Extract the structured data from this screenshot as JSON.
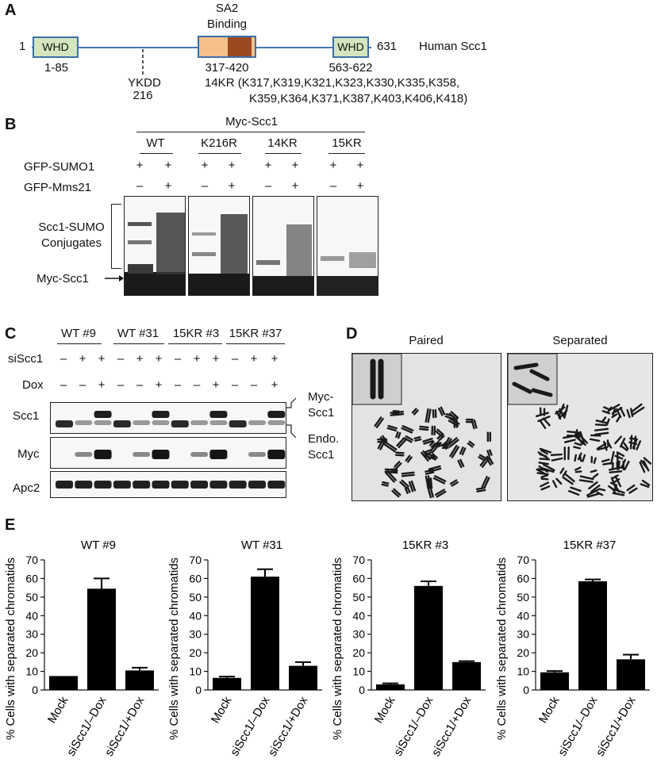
{
  "panel_labels": {
    "a": "A",
    "b": "B",
    "c": "C",
    "d": "D",
    "e": "E"
  },
  "panelA": {
    "start": "1",
    "end": "631",
    "protein": "Human Scc1",
    "whd1": "WHD",
    "whd1_range": "1-85",
    "whd2": "WHD",
    "whd2_range": "563-622",
    "sa2_line1": "SA2",
    "sa2_line2": "Binding",
    "sa2_range": "317-420",
    "ykdd": "YKDD",
    "ykdd_pos": "216",
    "kr_line1": "14KR (K317,K319,K321,K323,K330,K335,K358,",
    "kr_line2": "K359,K364,K371,K387,K403,K406,K418)",
    "colors": {
      "backbone": "#4a78b5",
      "whd_fill": "#d4e6bf",
      "whd_border": "#3d6fa8",
      "sa2_light": "#f6c08a",
      "sa2_dark": "#9b4a1f"
    }
  },
  "panelB": {
    "header": "Myc-Scc1",
    "groups": [
      "WT",
      "K216R",
      "14KR",
      "15KR"
    ],
    "row1_label": "GFP-SUMO1",
    "row2_label": "GFP-Mms21",
    "row1_signs": [
      "+",
      "+",
      "+",
      "+",
      "+",
      "+",
      "+",
      "+"
    ],
    "row2_signs": [
      "–",
      "+",
      "–",
      "+",
      "–",
      "+",
      "–",
      "+"
    ],
    "conj_line1": "Scc1-SUMO",
    "conj_line2": "Conjugates",
    "myc_label": "Myc-Scc1"
  },
  "panelC": {
    "groups": [
      "WT #9",
      "WT #31",
      "15KR #3",
      "15KR #37"
    ],
    "row1_label": "siScc1",
    "row2_label": "Dox",
    "row1_signs": [
      "–",
      "+",
      "+",
      "–",
      "+",
      "+",
      "–",
      "+",
      "+",
      "–",
      "+",
      "+"
    ],
    "row2_signs": [
      "–",
      "–",
      "+",
      "–",
      "–",
      "+",
      "–",
      "–",
      "+",
      "–",
      "–",
      "+"
    ],
    "blots": [
      "Scc1",
      "Myc",
      "Apc2"
    ],
    "myc_scc1_1": "Myc-",
    "myc_scc1_2": "Scc1",
    "endo_1": "Endo.",
    "endo_2": "Scc1"
  },
  "panelD": {
    "left_title": "Paired",
    "right_title": "Separated"
  },
  "chart_data": [
    {
      "type": "bar",
      "title": "WT #9",
      "ylabel": "% Cells with separated chromatids",
      "categories": [
        "Mock",
        "siScc1/–Dox",
        "siScc1/+Dox"
      ],
      "values": [
        7.5,
        54.5,
        10.5
      ],
      "errors": [
        0,
        5.5,
        1.5
      ],
      "ylim": [
        0,
        70
      ],
      "yticks": [
        0,
        10,
        20,
        30,
        40,
        50,
        60,
        70
      ]
    },
    {
      "type": "bar",
      "title": "WT #31",
      "ylabel": "% Cells with separated chromatids",
      "categories": [
        "Mock",
        "siScc1/–Dox",
        "siScc1/+Dox"
      ],
      "values": [
        6.5,
        61,
        13
      ],
      "errors": [
        0.7,
        4,
        2
      ],
      "ylim": [
        0,
        70
      ],
      "yticks": [
        0,
        10,
        20,
        30,
        40,
        50,
        60,
        70
      ]
    },
    {
      "type": "bar",
      "title": "15KR #3",
      "ylabel": "% Cells with separated chromatids",
      "categories": [
        "Mock",
        "siScc1/–Dox",
        "siScc1/+Dox"
      ],
      "values": [
        3,
        56,
        15
      ],
      "errors": [
        0.6,
        2.5,
        0.5
      ],
      "ylim": [
        0,
        70
      ],
      "yticks": [
        0,
        10,
        20,
        30,
        40,
        50,
        60,
        70
      ]
    },
    {
      "type": "bar",
      "title": "15KR #37",
      "ylabel": "% Cells with separated chromatids",
      "categories": [
        "Mock",
        "siScc1/–Dox",
        "siScc1/+Dox"
      ],
      "values": [
        9.5,
        58.5,
        16.5
      ],
      "errors": [
        0.7,
        1,
        2.5
      ],
      "ylim": [
        0,
        70
      ],
      "yticks": [
        0,
        10,
        20,
        30,
        40,
        50,
        60,
        70
      ]
    }
  ]
}
